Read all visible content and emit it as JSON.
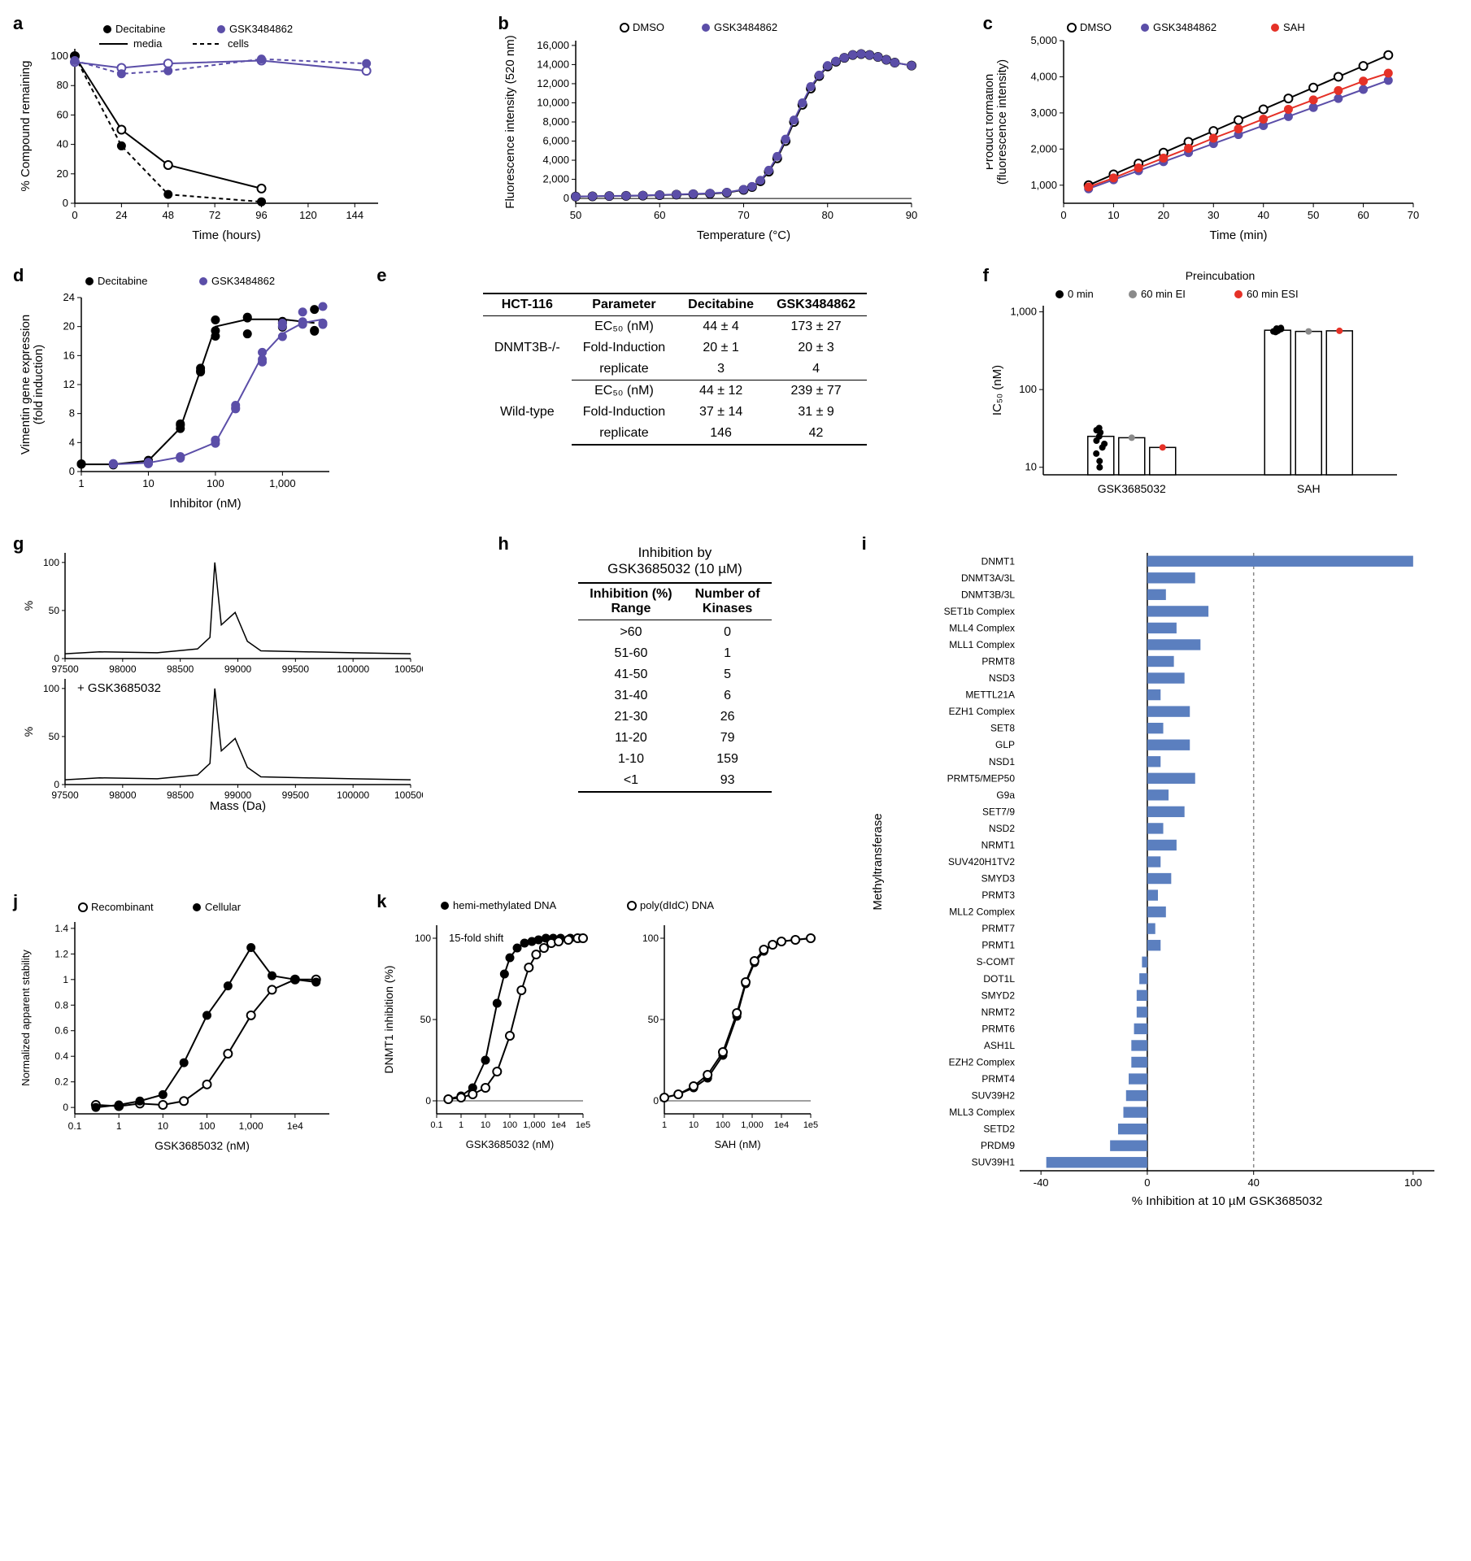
{
  "colors": {
    "black": "#000000",
    "purple": "#5b4ea8",
    "red": "#e53127",
    "gray": "#8a8a8a",
    "barBlue": "#5b7fbf",
    "axis": "#000000"
  },
  "panelA": {
    "label": "a",
    "legend": {
      "dec": "Decitabine",
      "gsk": "GSK3484862",
      "media": "media",
      "cells": "cells"
    },
    "x": {
      "title": "Time (hours)",
      "ticks": [
        0,
        24,
        48,
        72,
        96,
        120,
        144
      ],
      "min": 0,
      "max": 156
    },
    "y": {
      "title": "% Compound remaining",
      "ticks": [
        0,
        20,
        40,
        60,
        80,
        100
      ],
      "min": 0,
      "max": 105
    },
    "series": {
      "dec_media": {
        "x": [
          0,
          24,
          48,
          96
        ],
        "y": [
          100,
          50,
          26,
          10
        ],
        "color": "#000000",
        "marker": "open",
        "dash": "none"
      },
      "dec_cells": {
        "x": [
          0,
          24,
          48,
          96
        ],
        "y": [
          100,
          39,
          6,
          1
        ],
        "color": "#000000",
        "marker": "closed",
        "dash": "5,4"
      },
      "gsk_media": {
        "x": [
          0,
          24,
          48,
          96,
          150
        ],
        "y": [
          96,
          92,
          95,
          97,
          90
        ],
        "color": "#5b4ea8",
        "marker": "open",
        "dash": "none"
      },
      "gsk_cells": {
        "x": [
          0,
          24,
          48,
          96,
          150
        ],
        "y": [
          97,
          88,
          90,
          98,
          95
        ],
        "color": "#5b4ea8",
        "marker": "closed",
        "dash": "5,4"
      }
    }
  },
  "panelB": {
    "label": "b",
    "legend": {
      "dmso": "DMSO",
      "gsk": "GSK3484862"
    },
    "x": {
      "title": "Temperature (°C)",
      "ticks": [
        50,
        60,
        70,
        80,
        90
      ],
      "min": 50,
      "max": 90
    },
    "y": {
      "title": "Fluorescence intensity (520 nm)",
      "ticks": [
        0,
        2000,
        4000,
        6000,
        8000,
        10000,
        12000,
        14000,
        16000
      ],
      "min": -500,
      "max": 16500
    },
    "curve_x": [
      50,
      52,
      54,
      56,
      58,
      60,
      62,
      64,
      66,
      68,
      70,
      71,
      72,
      73,
      74,
      75,
      76,
      77,
      78,
      79,
      80,
      81,
      82,
      83,
      84,
      85,
      86,
      87,
      88,
      90
    ],
    "curve_dmso": [
      200,
      220,
      250,
      280,
      300,
      350,
      400,
      450,
      500,
      600,
      900,
      1200,
      1800,
      2800,
      4200,
      6000,
      8000,
      9800,
      11500,
      12800,
      13800,
      14300,
      14700,
      15000,
      15100,
      15000,
      14800,
      14500,
      14200,
      13900
    ],
    "curve_gsk": [
      200,
      230,
      260,
      290,
      320,
      370,
      420,
      480,
      540,
      640,
      950,
      1250,
      1900,
      2950,
      4400,
      6200,
      8200,
      10000,
      11700,
      12900,
      13900,
      14350,
      14720,
      15010,
      15110,
      15000,
      14800,
      14500,
      14200,
      13900
    ]
  },
  "panelC": {
    "label": "c",
    "legend": {
      "dmso": "DMSO",
      "gsk": "GSK3484862",
      "sah": "SAH"
    },
    "x": {
      "title": "Time (min)",
      "ticks": [
        0,
        10,
        20,
        30,
        40,
        50,
        60,
        70
      ],
      "min": 0,
      "max": 70
    },
    "y": {
      "title": "Product formation\n(fluorescence intensity)",
      "ticks": [
        1000,
        2000,
        3000,
        4000,
        5000
      ],
      "min": 500,
      "max": 5000
    },
    "series": {
      "dmso": {
        "x": [
          5,
          10,
          15,
          20,
          25,
          30,
          35,
          40,
          45,
          50,
          55,
          60,
          65
        ],
        "y": [
          1000,
          1300,
          1600,
          1900,
          2200,
          2500,
          2800,
          3100,
          3400,
          3700,
          4000,
          4300,
          4600
        ],
        "color": "#000000",
        "marker": "open"
      },
      "gsk": {
        "x": [
          5,
          10,
          15,
          20,
          25,
          30,
          35,
          40,
          45,
          50,
          55,
          60,
          65
        ],
        "y": [
          900,
          1150,
          1400,
          1650,
          1900,
          2150,
          2400,
          2650,
          2900,
          3150,
          3400,
          3650,
          3900
        ],
        "color": "#5b4ea8",
        "marker": "closed"
      },
      "sah": {
        "x": [
          5,
          10,
          15,
          20,
          25,
          30,
          35,
          40,
          45,
          50,
          55,
          60,
          65
        ],
        "y": [
          950,
          1200,
          1480,
          1750,
          2020,
          2300,
          2560,
          2830,
          3100,
          3360,
          3620,
          3880,
          4100
        ],
        "color": "#e53127",
        "marker": "closed"
      }
    }
  },
  "panelD": {
    "label": "d",
    "legend": {
      "dec": "Decitabine",
      "gsk": "GSK3484862"
    },
    "x": {
      "title": "Inhibitor (nM)",
      "ticks": [
        1,
        10,
        100,
        1000
      ],
      "min": 1,
      "max": 5000,
      "log": true
    },
    "y": {
      "title": "Vimentin gene expression\n(fold induction)",
      "ticks": [
        0,
        4,
        8,
        12,
        16,
        20,
        24
      ],
      "min": 0,
      "max": 24
    },
    "dec": {
      "x": [
        1,
        3,
        10,
        30,
        60,
        100,
        300,
        1000,
        3000
      ],
      "y": [
        1,
        1,
        1.5,
        6,
        14,
        20,
        21,
        21,
        20.5
      ],
      "color": "#000000"
    },
    "gsk": {
      "x": [
        3,
        10,
        30,
        100,
        200,
        500,
        1000,
        2000,
        4000
      ],
      "y": [
        1,
        1.2,
        2,
        4,
        9,
        16,
        19,
        20.5,
        21
      ],
      "color": "#5b4ea8"
    }
  },
  "panelE": {
    "label": "e",
    "header": [
      "HCT-116",
      "Parameter",
      "Decitabine",
      "GSK3484862"
    ],
    "rows": [
      [
        "DNMT3B-/-",
        "EC₅₀ (nM)",
        "44 ± 4",
        "173 ± 27"
      ],
      [
        "",
        "Fold-Induction",
        "20 ± 1",
        "20 ± 3"
      ],
      [
        "",
        "replicate",
        "3",
        "4"
      ],
      [
        "Wild-type",
        "EC₅₀ (nM)",
        "44 ± 12",
        "239 ± 77"
      ],
      [
        "",
        "Fold-Induction",
        "37 ± 14",
        "31 ± 9"
      ],
      [
        "",
        "replicate",
        "146",
        "42"
      ]
    ]
  },
  "panelF": {
    "label": "f",
    "legendTitle": "Preincubation",
    "legend": {
      "zero": "0 min",
      "ei": "60 min EI",
      "esi": "60 min ESI"
    },
    "y": {
      "title": "IC₅₀ (nM)",
      "ticks": [
        10,
        100,
        1000
      ],
      "min": 8,
      "max": 1200,
      "log": true
    },
    "xcats": [
      "GSK3685032",
      "SAH"
    ],
    "bars": {
      "GSK3685032": {
        "zero": 25,
        "ei": 24,
        "esi": 18,
        "scatter0": [
          30,
          32,
          28,
          25,
          22,
          20,
          18,
          15,
          12,
          10
        ]
      },
      "SAH": {
        "zero": 580,
        "ei": 560,
        "esi": 570,
        "scatter0": [
          600,
          580,
          560,
          620,
          550,
          590,
          610,
          570,
          600
        ]
      }
    }
  },
  "panelG": {
    "label": "g",
    "x": {
      "title": "Mass (Da)",
      "ticks": [
        97500,
        98000,
        98500,
        99000,
        99500,
        100000,
        100500
      ],
      "min": 97500,
      "max": 100500
    },
    "y": {
      "title": "%",
      "ticks": [
        0,
        50,
        100
      ],
      "min": 0,
      "max": 110
    },
    "topLabel": "",
    "bottomLabel": "+ GSK3685032",
    "peakX": 98800
  },
  "panelH": {
    "label": "h",
    "title": "Inhibition by\nGSK3685032 (10 µM)",
    "header": [
      "Inhibition (%)\nRange",
      "Number of\nKinases"
    ],
    "rows": [
      [
        ">60",
        "0"
      ],
      [
        "51-60",
        "1"
      ],
      [
        "41-50",
        "5"
      ],
      [
        "31-40",
        "6"
      ],
      [
        "21-30",
        "26"
      ],
      [
        "11-20",
        "79"
      ],
      [
        "1-10",
        "159"
      ],
      [
        "<1",
        "93"
      ]
    ]
  },
  "panelI": {
    "label": "i",
    "x": {
      "title": "% Inhibition at 10 µM GSK3685032",
      "ticks": [
        -40,
        0,
        40,
        100
      ],
      "min": -48,
      "max": 108
    },
    "yTitle": "Methyltransferase",
    "dashAt": 40,
    "items": [
      {
        "name": "DNMT1",
        "v": 100
      },
      {
        "name": "DNMT3A/3L",
        "v": 18
      },
      {
        "name": "DNMT3B/3L",
        "v": 7
      },
      {
        "name": "SET1b Complex",
        "v": 23
      },
      {
        "name": "MLL4 Complex",
        "v": 11
      },
      {
        "name": "MLL1 Complex",
        "v": 20
      },
      {
        "name": "PRMT8",
        "v": 10
      },
      {
        "name": "NSD3",
        "v": 14
      },
      {
        "name": "METTL21A",
        "v": 5
      },
      {
        "name": "EZH1 Complex",
        "v": 16
      },
      {
        "name": "SET8",
        "v": 6
      },
      {
        "name": "GLP",
        "v": 16
      },
      {
        "name": "NSD1",
        "v": 5
      },
      {
        "name": "PRMT5/MEP50",
        "v": 18
      },
      {
        "name": "G9a",
        "v": 8
      },
      {
        "name": "SET7/9",
        "v": 14
      },
      {
        "name": "NSD2",
        "v": 6
      },
      {
        "name": "NRMT1",
        "v": 11
      },
      {
        "name": "SUV420H1TV2",
        "v": 5
      },
      {
        "name": "SMYD3",
        "v": 9
      },
      {
        "name": "PRMT3",
        "v": 4
      },
      {
        "name": "MLL2 Complex",
        "v": 7
      },
      {
        "name": "PRMT7",
        "v": 3
      },
      {
        "name": "PRMT1",
        "v": 5
      },
      {
        "name": "S-COMT",
        "v": -2
      },
      {
        "name": "DOT1L",
        "v": -3
      },
      {
        "name": "SMYD2",
        "v": -4
      },
      {
        "name": "NRMT2",
        "v": -4
      },
      {
        "name": "PRMT6",
        "v": -5
      },
      {
        "name": "ASH1L",
        "v": -6
      },
      {
        "name": "EZH2 Complex",
        "v": -6
      },
      {
        "name": "PRMT4",
        "v": -7
      },
      {
        "name": "SUV39H2",
        "v": -8
      },
      {
        "name": "MLL3 Complex",
        "v": -9
      },
      {
        "name": "SETD2",
        "v": -11
      },
      {
        "name": "PRDM9",
        "v": -14
      },
      {
        "name": "SUV39H1",
        "v": -38
      }
    ]
  },
  "panelJ": {
    "label": "j",
    "legend": {
      "rec": "Recombinant",
      "cell": "Cellular"
    },
    "x": {
      "title": "GSK3685032 (nM)",
      "ticks": [
        0.1,
        1,
        10,
        100,
        1000,
        10000
      ],
      "min": 0.1,
      "max": 60000,
      "log": true
    },
    "y": {
      "title": "Normalized apparent stability",
      "ticks": [
        0,
        0.2,
        0.4,
        0.6,
        0.8,
        1.0,
        1.2,
        1.4
      ],
      "min": -0.05,
      "max": 1.45
    },
    "rec": {
      "x": [
        0.3,
        1,
        3,
        10,
        30,
        100,
        300,
        1000,
        3000,
        10000,
        30000
      ],
      "y": [
        0.02,
        0.01,
        0.03,
        0.02,
        0.05,
        0.18,
        0.42,
        0.72,
        0.92,
        1.0,
        1.0
      ]
    },
    "cell": {
      "x": [
        0.3,
        1,
        3,
        10,
        30,
        100,
        300,
        1000,
        3000,
        10000,
        30000
      ],
      "y": [
        0.0,
        0.02,
        0.05,
        0.1,
        0.35,
        0.72,
        0.95,
        1.25,
        1.03,
        1.0,
        0.98
      ]
    }
  },
  "panelK": {
    "label": "k",
    "legend": {
      "hemi": "hemi-methylated  DNA",
      "poly": "poly(dIdC)  DNA"
    },
    "shiftLabel": "15-fold shift",
    "y": {
      "title": "DNMT1 inhibition (%)",
      "ticks": [
        0,
        50,
        100
      ],
      "min": -8,
      "max": 108
    },
    "left": {
      "xTitle": "GSK3685032 (nM)",
      "xTicks": [
        0.1,
        1,
        10,
        100,
        1000,
        10000,
        100000
      ],
      "hemi": {
        "x": [
          0.3,
          1,
          3,
          10,
          30,
          60,
          100,
          200,
          400,
          800,
          1500,
          3000,
          6000,
          12000,
          30000,
          80000
        ],
        "y": [
          1,
          3,
          8,
          25,
          60,
          78,
          88,
          94,
          97,
          98,
          99,
          100,
          100,
          100,
          100,
          100
        ]
      },
      "poly": {
        "x": [
          0.3,
          1,
          3,
          10,
          30,
          100,
          300,
          600,
          1200,
          2500,
          5000,
          10000,
          25000,
          60000,
          100000
        ],
        "y": [
          1,
          2,
          4,
          8,
          18,
          40,
          68,
          82,
          90,
          94,
          97,
          98,
          99,
          100,
          100
        ]
      }
    },
    "right": {
      "xTitle": "SAH (nM)",
      "xTicks": [
        1,
        10,
        100,
        1000,
        10000,
        100000
      ],
      "hemi": {
        "x": [
          1,
          3,
          10,
          30,
          100,
          300,
          600,
          1200,
          2500,
          5000,
          10000,
          30000,
          100000
        ],
        "y": [
          2,
          4,
          8,
          14,
          28,
          52,
          72,
          85,
          92,
          96,
          98,
          99,
          100
        ]
      },
      "poly": {
        "x": [
          1,
          3,
          10,
          30,
          100,
          300,
          600,
          1200,
          2500,
          5000,
          10000,
          30000,
          100000
        ],
        "y": [
          2,
          4,
          9,
          16,
          30,
          54,
          73,
          86,
          93,
          96,
          98,
          99,
          100
        ]
      }
    }
  }
}
